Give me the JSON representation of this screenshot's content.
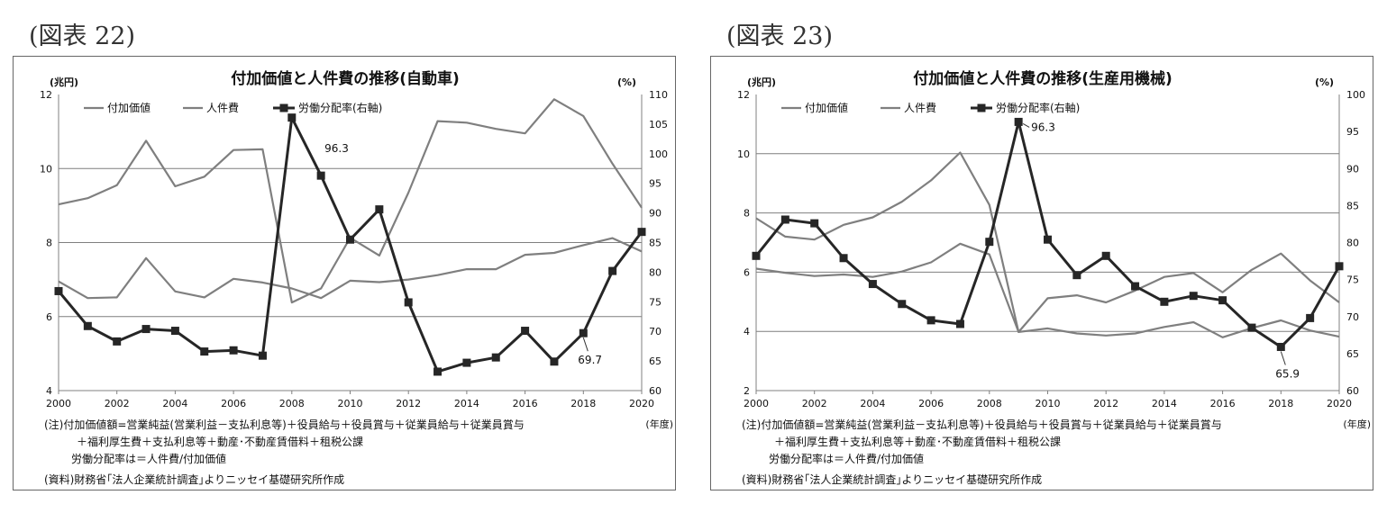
{
  "charts": [
    {
      "figure_label": "(図表 22)",
      "notes": [
        "(注)付加価値額=営業純益(営業利益－支払利息等)＋役員給与＋役員賞与＋従業員給与＋従業員賞与",
        "＋福利厚生費＋支払利息等＋動産･不動産賃借料＋租税公課",
        "労働分配率は＝人件費/付加価値",
        "(資料)財務省｢法人企業統計調査｣よりニッセイ基礎研究所作成"
      ]
    },
    {
      "figure_label": "(図表 23)",
      "notes": [
        "(注)付加価値額=営業純益(営業利益－支払利息等)＋役員給与＋役員賞与＋従業員給与＋従業員賞与",
        "＋福利厚生費＋支払利息等＋動産･不動産賃借料＋租税公課",
        "労働分配率は＝人件費/付加価値",
        "(資料)財務省｢法人企業統計調査｣よりニッセイ基礎研究所作成"
      ]
    }
  ],
  "colors": {
    "gray_series": "#7f7f7f",
    "black_series": "#262626",
    "grid": "#7f7f7f"
  },
  "chart_data": [
    {
      "type": "line",
      "title": "付加価値と人件費の推移(自動車)",
      "ylabel_left": "(兆円)",
      "ylabel_right": "(%)",
      "xlabel": "(年度)",
      "x": [
        2000,
        2001,
        2002,
        2003,
        2004,
        2005,
        2006,
        2007,
        2008,
        2009,
        2010,
        2011,
        2012,
        2013,
        2014,
        2015,
        2016,
        2017,
        2018,
        2019,
        2020
      ],
      "x_ticks": [
        2000,
        2002,
        2004,
        2006,
        2008,
        2010,
        2012,
        2014,
        2016,
        2018,
        2020
      ],
      "ylim_left": [
        4,
        12
      ],
      "yticks_left": [
        4,
        6,
        8,
        10,
        12
      ],
      "ylim_right": [
        60,
        110
      ],
      "yticks_right": [
        60,
        65,
        70,
        75,
        80,
        85,
        90,
        95,
        100,
        105,
        110
      ],
      "gridlines_left": [
        6,
        8,
        10
      ],
      "series": [
        {
          "name": "付加価値",
          "axis": "left",
          "marker": "none",
          "values": [
            9.03,
            9.2,
            9.55,
            10.75,
            9.52,
            9.78,
            10.5,
            10.52,
            6.38,
            6.76,
            8.13,
            7.65,
            9.35,
            11.28,
            11.24,
            11.07,
            10.95,
            11.87,
            11.42,
            10.13,
            8.94
          ]
        },
        {
          "name": "人件費",
          "axis": "left",
          "marker": "none",
          "values": [
            6.95,
            6.5,
            6.52,
            7.58,
            6.68,
            6.52,
            7.02,
            6.92,
            6.76,
            6.5,
            6.97,
            6.93,
            7.0,
            7.12,
            7.28,
            7.28,
            7.67,
            7.72,
            7.93,
            8.12,
            7.76
          ]
        },
        {
          "name": "労働分配率(右軸)",
          "axis": "right",
          "marker": "square",
          "values": [
            76.8,
            70.9,
            68.3,
            70.4,
            70.1,
            66.6,
            66.8,
            65.9,
            106.1,
            96.3,
            85.5,
            90.6,
            74.9,
            63.2,
            64.7,
            65.6,
            70.1,
            64.9,
            69.7,
            80.2,
            86.8
          ]
        }
      ],
      "annotations": [
        {
          "x": 2009,
          "label": "96.3"
        },
        {
          "x": 2018,
          "label": "69.7"
        }
      ],
      "legend": "top-left"
    },
    {
      "type": "line",
      "title": "付加価値と人件費の推移(生産用機械)",
      "ylabel_left": "(兆円)",
      "ylabel_right": "(%)",
      "xlabel": "(年度)",
      "x": [
        2000,
        2001,
        2002,
        2003,
        2004,
        2005,
        2006,
        2007,
        2008,
        2009,
        2010,
        2011,
        2012,
        2013,
        2014,
        2015,
        2016,
        2017,
        2018,
        2019,
        2020
      ],
      "x_ticks": [
        2000,
        2002,
        2004,
        2006,
        2008,
        2010,
        2012,
        2014,
        2016,
        2018,
        2020
      ],
      "ylim_left": [
        2,
        12
      ],
      "yticks_left": [
        2,
        4,
        6,
        8,
        10,
        12
      ],
      "ylim_right": [
        60,
        100
      ],
      "yticks_right": [
        60,
        65,
        70,
        75,
        80,
        85,
        90,
        95,
        100
      ],
      "gridlines_left": [
        4,
        6,
        8,
        10
      ],
      "series": [
        {
          "name": "付加価値",
          "axis": "left",
          "marker": "none",
          "values": [
            7.82,
            7.2,
            7.1,
            7.6,
            7.85,
            8.38,
            9.1,
            10.04,
            8.27,
            3.98,
            5.12,
            5.22,
            4.98,
            5.38,
            5.84,
            5.97,
            5.32,
            6.08,
            6.63,
            5.72,
            4.98
          ]
        },
        {
          "name": "人件費",
          "axis": "left",
          "marker": "none",
          "values": [
            6.12,
            5.98,
            5.87,
            5.92,
            5.84,
            6.02,
            6.33,
            6.96,
            6.6,
            3.98,
            4.1,
            3.93,
            3.86,
            3.93,
            4.15,
            4.31,
            3.8,
            4.11,
            4.37,
            4.03,
            3.82
          ]
        },
        {
          "name": "労働分配率(右軸)",
          "axis": "right",
          "marker": "square",
          "values": [
            78.2,
            83.1,
            82.6,
            77.9,
            74.4,
            71.7,
            69.5,
            69.0,
            80.1,
            96.3,
            80.4,
            75.6,
            78.2,
            74.1,
            72.0,
            72.8,
            72.2,
            68.5,
            65.9,
            69.8,
            76.8
          ]
        }
      ],
      "annotations": [
        {
          "x": 2009,
          "label": "96.3"
        },
        {
          "x": 2018,
          "label": "65.9"
        }
      ],
      "legend": "top-left"
    }
  ]
}
